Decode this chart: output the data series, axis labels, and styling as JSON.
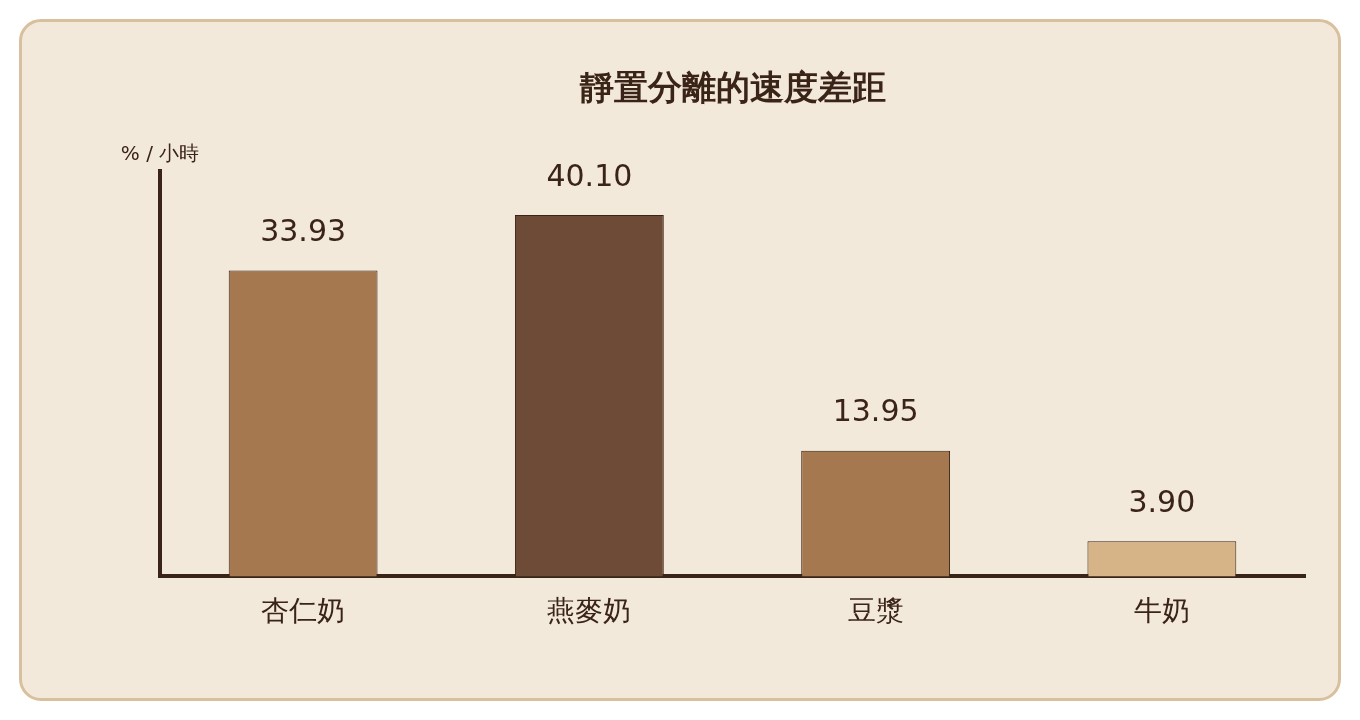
{
  "chart_data": {
    "type": "bar",
    "title": "靜置分離的速度差距",
    "ylabel": "% / 小時",
    "categories": [
      "杏仁奶",
      "燕麥奶",
      "豆漿",
      "牛奶"
    ],
    "values": [
      33.93,
      40.1,
      13.95,
      3.9
    ],
    "colors": [
      "#a57850",
      "#6d4b36",
      "#a57850",
      "#d6b488"
    ],
    "value_labels": [
      "33.93",
      "40.10",
      "13.95",
      "3.90"
    ],
    "tick_labels": "x",
    "grid": false,
    "legend": false
  }
}
